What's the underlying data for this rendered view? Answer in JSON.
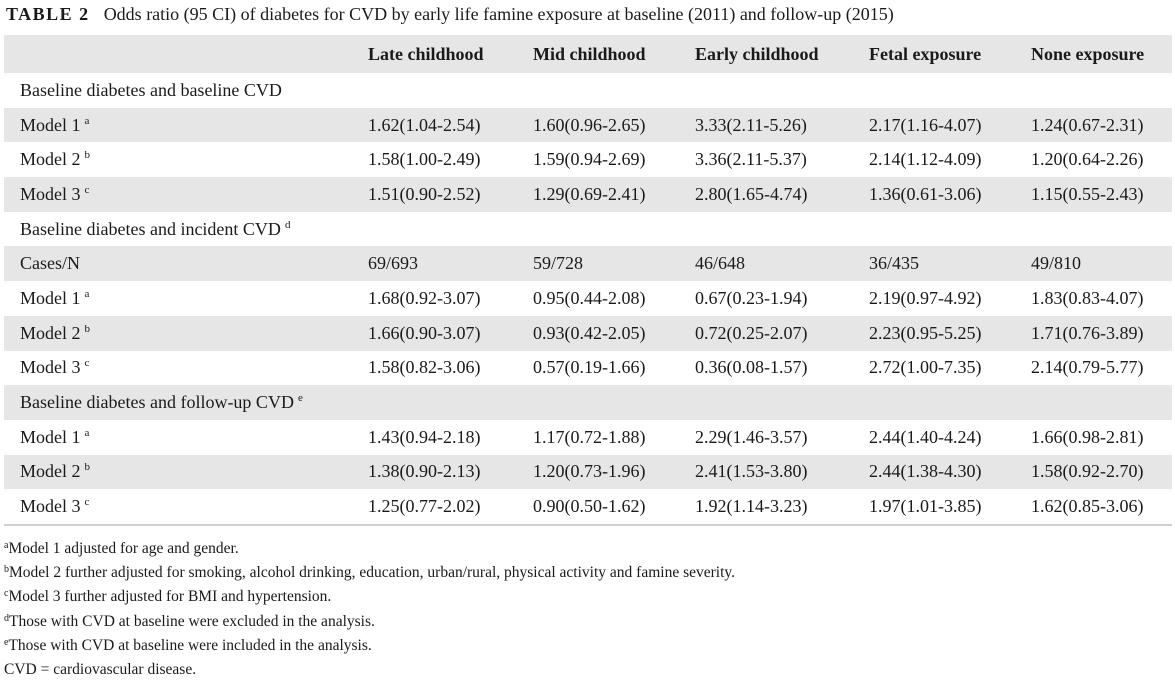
{
  "caption": {
    "label": "TABLE 2",
    "text": "Odds ratio (95 CI) of diabetes for CVD by early life famine exposure at baseline (2011) and follow-up (2015)"
  },
  "table": {
    "columns": [
      "",
      "Late childhood",
      "Mid childhood",
      "Early childhood",
      "Fetal exposure",
      "None exposure"
    ],
    "rows": [
      {
        "label": "Baseline diabetes and baseline CVD",
        "sup": "",
        "cells": []
      },
      {
        "label": "Model 1",
        "sup": "a",
        "cells": [
          "1.62(1.04-2.54)",
          "1.60(0.96-2.65)",
          "3.33(2.11-5.26)",
          "2.17(1.16-4.07)",
          "1.24(0.67-2.31)"
        ]
      },
      {
        "label": "Model 2",
        "sup": "b",
        "cells": [
          "1.58(1.00-2.49)",
          "1.59(0.94-2.69)",
          "3.36(2.11-5.37)",
          "2.14(1.12-4.09)",
          "1.20(0.64-2.26)"
        ]
      },
      {
        "label": "Model 3",
        "sup": "c",
        "cells": [
          "1.51(0.90-2.52)",
          "1.29(0.69-2.41)",
          "2.80(1.65-4.74)",
          "1.36(0.61-3.06)",
          "1.15(0.55-2.43)"
        ]
      },
      {
        "label": "Baseline diabetes and incident CVD",
        "sup": "d",
        "cells": []
      },
      {
        "label": "Cases/N",
        "sup": "",
        "cells": [
          "69/693",
          "59/728",
          "46/648",
          "36/435",
          "49/810"
        ]
      },
      {
        "label": "Model 1",
        "sup": "a",
        "cells": [
          "1.68(0.92-3.07)",
          "0.95(0.44-2.08)",
          "0.67(0.23-1.94)",
          "2.19(0.97-4.92)",
          "1.83(0.83-4.07)"
        ]
      },
      {
        "label": "Model 2",
        "sup": "b",
        "cells": [
          "1.66(0.90-3.07)",
          "0.93(0.42-2.05)",
          "0.72(0.25-2.07)",
          "2.23(0.95-5.25)",
          "1.71(0.76-3.89)"
        ]
      },
      {
        "label": "Model 3",
        "sup": "c",
        "cells": [
          "1.58(0.82-3.06)",
          "0.57(0.19-1.66)",
          "0.36(0.08-1.57)",
          "2.72(1.00-7.35)",
          "2.14(0.79-5.77)"
        ]
      },
      {
        "label": "Baseline diabetes and follow-up CVD",
        "sup": "e",
        "cells": []
      },
      {
        "label": "Model 1",
        "sup": "a",
        "cells": [
          "1.43(0.94-2.18)",
          "1.17(0.72-1.88)",
          "2.29(1.46-3.57)",
          "2.44(1.40-4.24)",
          "1.66(0.98-2.81)"
        ]
      },
      {
        "label": "Model 2",
        "sup": "b",
        "cells": [
          "1.38(0.90-2.13)",
          "1.20(0.73-1.96)",
          "2.41(1.53-3.80)",
          "2.44(1.38-4.30)",
          "1.58(0.92-2.70)"
        ]
      },
      {
        "label": "Model 3",
        "sup": "c",
        "cells": [
          "1.25(0.77-2.02)",
          "0.90(0.50-1.62)",
          "1.92(1.14-3.23)",
          "1.97(1.01-3.85)",
          "1.62(0.85-3.06)"
        ]
      }
    ]
  },
  "footnotes": [
    {
      "mark": "a",
      "text": "Model 1 adjusted for age and gender."
    },
    {
      "mark": "b",
      "text": "Model 2 further adjusted for smoking, alcohol drinking, education, urban/rural, physical activity and famine severity."
    },
    {
      "mark": "c",
      "text": "Model 3 further adjusted for BMI and hypertension."
    },
    {
      "mark": "d",
      "text": "Those with CVD at baseline were excluded in the analysis."
    },
    {
      "mark": "e",
      "text": "Those with CVD at baseline were included in the analysis."
    },
    {
      "mark": "",
      "text": "CVD = cardiovascular disease."
    }
  ],
  "colors": {
    "stripe": "#e6e6e6",
    "text": "#1a1a1a"
  }
}
